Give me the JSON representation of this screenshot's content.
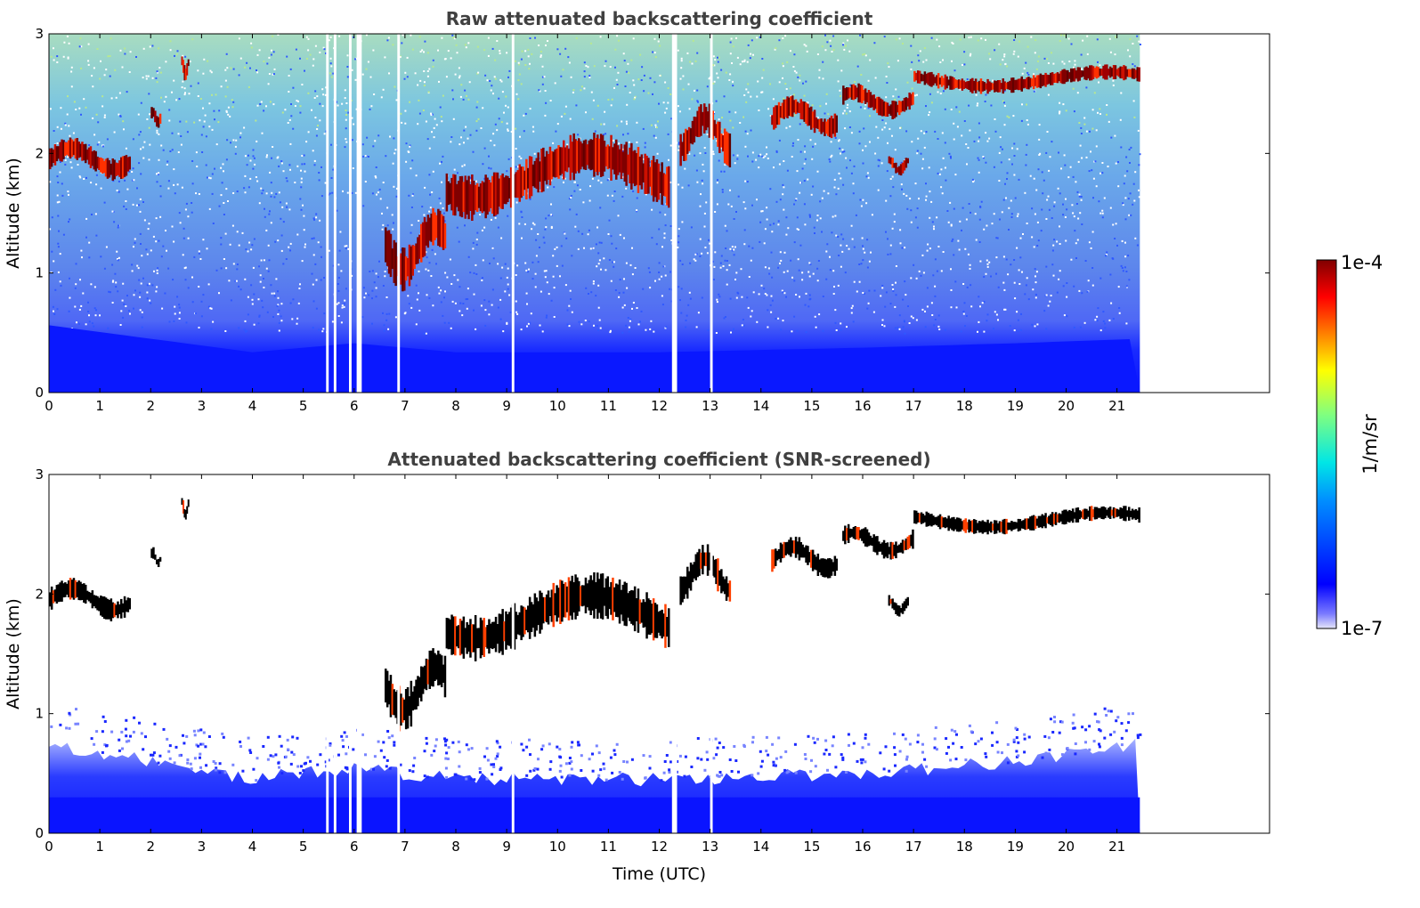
{
  "chart_data": [
    {
      "type": "heatmap",
      "title": "Raw attenuated backscattering coefficient",
      "xlabel": "",
      "ylabel": "Altitude (km)",
      "xlim": [
        0,
        24
      ],
      "ylim": [
        0,
        3
      ],
      "xticks": [
        "0",
        "1",
        "2",
        "3",
        "4",
        "5",
        "6",
        "7",
        "8",
        "9",
        "10",
        "11",
        "12",
        "13",
        "14",
        "15",
        "16",
        "17",
        "18",
        "19",
        "20",
        "21"
      ],
      "yticks": [
        "0",
        "1",
        "2",
        "3"
      ],
      "data_extent_hours": [
        0,
        21.45
      ],
      "missing_data_gaps_utc": [
        [
          5.45,
          5.5
        ],
        [
          5.6,
          5.65
        ],
        [
          5.9,
          5.95
        ],
        [
          6.05,
          6.15
        ],
        [
          6.85,
          6.9
        ],
        [
          9.1,
          9.15
        ],
        [
          12.25,
          12.35
        ],
        [
          13.0,
          13.05
        ]
      ],
      "cloud_layers": [
        {
          "t_start": 0.0,
          "t_end": 1.6,
          "base_km": 1.85,
          "top_km": 2.15
        },
        {
          "t_start": 2.0,
          "t_end": 2.2,
          "base_km": 2.25,
          "top_km": 2.4
        },
        {
          "t_start": 2.6,
          "t_end": 2.75,
          "base_km": 2.65,
          "top_km": 2.85
        },
        {
          "t_start": 6.6,
          "t_end": 7.8,
          "base_km": 1.0,
          "top_km": 1.6
        },
        {
          "t_start": 7.8,
          "t_end": 12.2,
          "base_km": 1.6,
          "top_km": 2.2
        },
        {
          "t_start": 12.4,
          "t_end": 13.4,
          "base_km": 2.0,
          "top_km": 2.45
        },
        {
          "t_start": 14.2,
          "t_end": 15.5,
          "base_km": 2.2,
          "top_km": 2.5
        },
        {
          "t_start": 15.6,
          "t_end": 17.0,
          "base_km": 2.35,
          "top_km": 2.6
        },
        {
          "t_start": 16.5,
          "t_end": 16.9,
          "base_km": 1.85,
          "top_km": 2.0
        },
        {
          "t_start": 17.0,
          "t_end": 21.45,
          "base_km": 2.55,
          "top_km": 2.75
        }
      ],
      "boundary_layer_top_km": [
        {
          "t": 0,
          "km": 0.75
        },
        {
          "t": 2,
          "km": 0.6
        },
        {
          "t": 4,
          "km": 0.45
        },
        {
          "t": 6,
          "km": 0.55
        },
        {
          "t": 8,
          "km": 0.45
        },
        {
          "t": 12,
          "km": 0.45
        },
        {
          "t": 16,
          "km": 0.5
        },
        {
          "t": 19,
          "km": 0.55
        },
        {
          "t": 21.45,
          "km": 0.6
        }
      ]
    },
    {
      "type": "heatmap",
      "title": "Attenuated backscattering coefficient (SNR-screened)",
      "xlabel": "Time (UTC)",
      "ylabel": "Altitude (km)",
      "xlim": [
        0,
        24
      ],
      "ylim": [
        0,
        3
      ],
      "xticks": [
        "0",
        "1",
        "2",
        "3",
        "4",
        "5",
        "6",
        "7",
        "8",
        "9",
        "10",
        "11",
        "12",
        "13",
        "14",
        "15",
        "16",
        "17",
        "18",
        "19",
        "20",
        "21"
      ],
      "yticks": [
        "0",
        "1",
        "2",
        "3"
      ],
      "data_extent_hours": [
        0,
        21.45
      ],
      "screening": "low-SNR pixels removed (white); saturated cloud cores shown in black",
      "boundary_layer_top_km": [
        {
          "t": 0,
          "km": 0.75
        },
        {
          "t": 2,
          "km": 0.6
        },
        {
          "t": 4,
          "km": 0.45
        },
        {
          "t": 6,
          "km": 0.55
        },
        {
          "t": 8,
          "km": 0.45
        },
        {
          "t": 12,
          "km": 0.45
        },
        {
          "t": 16,
          "km": 0.5
        },
        {
          "t": 19,
          "km": 0.6
        },
        {
          "t": 21.45,
          "km": 0.75
        }
      ]
    }
  ],
  "colorbar": {
    "label": "1/m/sr",
    "max_label": "1e-4",
    "min_label": "1e-7",
    "scale": "log",
    "range": [
      1e-07,
      0.0001
    ],
    "colormap": [
      "#e6e6f8",
      "#0000ff",
      "#0090ff",
      "#00e6e6",
      "#80ff80",
      "#ffff00",
      "#ff8000",
      "#ff0000",
      "#800000"
    ]
  }
}
